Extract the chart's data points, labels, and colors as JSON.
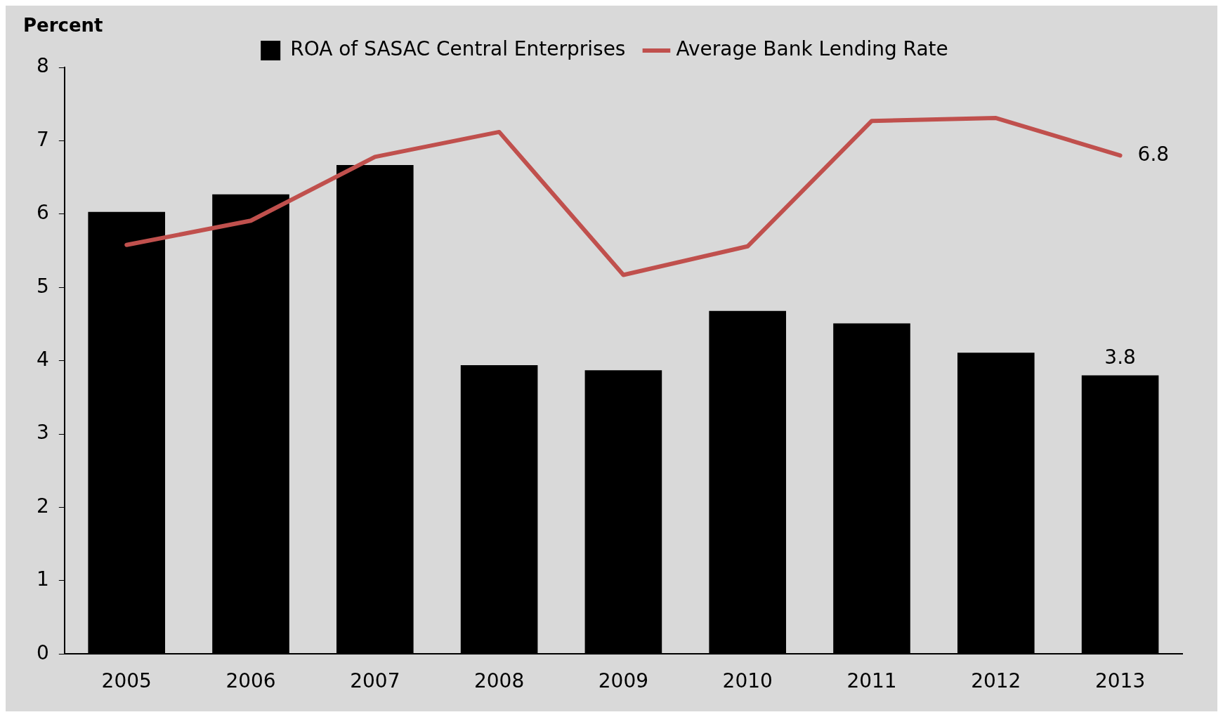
{
  "chart_data": {
    "type": "bar",
    "ylabel": "Percent",
    "categories": [
      "2005",
      "2006",
      "2007",
      "2008",
      "2009",
      "2010",
      "2011",
      "2012",
      "2013"
    ],
    "series": [
      {
        "name": "ROA of SASAC Central Enterprises",
        "color": "#000000",
        "values": [
          6.03,
          6.27,
          6.67,
          3.94,
          3.87,
          4.68,
          4.51,
          4.11,
          3.8
        ],
        "value_labels": [
          null,
          null,
          null,
          null,
          null,
          null,
          null,
          null,
          "3.8"
        ]
      },
      {
        "name": "Average Bank Lending Rate",
        "type": "line",
        "color": "#c0504d",
        "values": [
          5.58,
          5.91,
          6.78,
          7.12,
          5.17,
          5.56,
          7.27,
          7.31,
          6.8
        ],
        "value_labels": [
          null,
          null,
          null,
          null,
          null,
          null,
          null,
          null,
          "6.8"
        ]
      }
    ],
    "ylim": [
      0,
      8
    ],
    "yticks": [
      0,
      1,
      2,
      3,
      4,
      5,
      6,
      7,
      8
    ],
    "grid": false,
    "legend": "top",
    "marker": "none"
  }
}
